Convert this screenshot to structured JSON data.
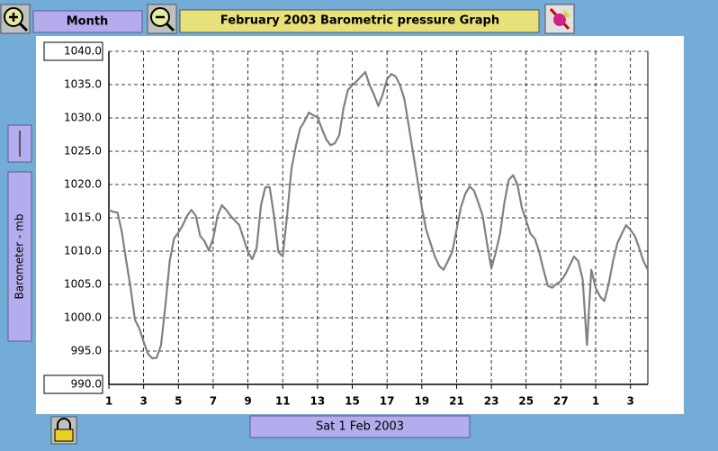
{
  "chart_data": {
    "type": "line",
    "title": "February 2003 Barometric pressure Graph",
    "y_label": "Barometer - mb",
    "color": "#808080",
    "grid": true,
    "x": [
      1,
      1.25,
      1.5,
      1.75,
      2,
      2.25,
      2.5,
      2.75,
      3,
      3.25,
      3.5,
      3.75,
      4,
      4.25,
      4.5,
      4.75,
      5,
      5.25,
      5.5,
      5.75,
      6,
      6.25,
      6.5,
      6.75,
      7,
      7.25,
      7.5,
      7.75,
      8,
      8.25,
      8.5,
      8.75,
      9,
      9.25,
      9.5,
      9.75,
      10,
      10.25,
      10.5,
      10.75,
      11,
      11.25,
      11.5,
      11.75,
      12,
      12.25,
      12.5,
      12.75,
      13,
      13.25,
      13.5,
      13.75,
      14,
      14.25,
      14.5,
      14.75,
      15,
      15.25,
      15.5,
      15.75,
      16,
      16.25,
      16.5,
      16.75,
      17,
      17.25,
      17.5,
      17.75,
      18,
      18.25,
      18.5,
      18.75,
      19,
      19.25,
      19.5,
      19.75,
      20,
      20.25,
      20.5,
      20.75,
      21,
      21.25,
      21.5,
      21.75,
      22,
      22.25,
      22.5,
      22.75,
      23,
      23.25,
      23.5,
      23.75,
      24,
      24.25,
      24.5,
      24.75,
      25,
      25.25,
      25.5,
      25.75,
      26,
      26.25,
      26.5,
      26.75,
      27,
      27.25,
      27.5,
      27.75,
      28,
      28.25,
      28.5,
      28.75,
      29,
      29.25,
      29.5,
      29.75,
      30,
      30.25,
      30.5,
      30.75,
      31,
      31.25,
      31.5,
      31.75,
      32
    ],
    "values": [
      1016.2,
      1015.9,
      1015.8,
      1012.8,
      1008.5,
      1004.5,
      999.7,
      998.4,
      996.4,
      994.6,
      993.9,
      994.0,
      995.9,
      1001.8,
      1008.5,
      1011.9,
      1012.8,
      1013.9,
      1015.3,
      1016.2,
      1015.3,
      1012.3,
      1011.5,
      1010.1,
      1011.9,
      1015.3,
      1016.9,
      1016.2,
      1015.3,
      1014.6,
      1013.9,
      1011.9,
      1009.9,
      1008.8,
      1010.5,
      1016.9,
      1019.6,
      1019.6,
      1015.3,
      1009.9,
      1009.2,
      1015.3,
      1022.3,
      1025.7,
      1028.4,
      1029.5,
      1030.8,
      1030.4,
      1030.1,
      1028.4,
      1026.8,
      1025.9,
      1026.2,
      1027.4,
      1031.5,
      1034.2,
      1034.9,
      1035.5,
      1036.2,
      1036.9,
      1034.9,
      1033.5,
      1031.8,
      1033.5,
      1035.8,
      1036.6,
      1036.2,
      1034.9,
      1032.8,
      1028.8,
      1024.7,
      1020.7,
      1016.6,
      1013.2,
      1011.2,
      1009.2,
      1007.8,
      1007.2,
      1008.5,
      1009.9,
      1013.2,
      1016.6,
      1018.6,
      1019.7,
      1019.1,
      1017.3,
      1015.3,
      1011.2,
      1007.4,
      1009.8,
      1012.6,
      1017.3,
      1020.7,
      1021.4,
      1020.0,
      1016.6,
      1014.6,
      1012.6,
      1011.9,
      1009.9,
      1007.2,
      1004.8,
      1004.5,
      1005.1,
      1005.5,
      1006.5,
      1007.8,
      1009.2,
      1008.5,
      1005.8,
      995.9,
      1007.2,
      1004.5,
      1003.2,
      1002.5,
      1005.1,
      1008.5,
      1011.2,
      1012.6,
      1013.9,
      1013.2,
      1012.3,
      1010.5,
      1008.5,
      1007.2
    ],
    "xlim": [
      1,
      32
    ],
    "xticks": [
      1,
      3,
      5,
      7,
      9,
      11,
      13,
      15,
      17,
      19,
      21,
      23,
      25,
      27,
      {
        "value": 29,
        "label": "1"
      },
      {
        "value": 31,
        "label": "3"
      }
    ],
    "ylim": [
      990,
      1040
    ],
    "yticks": [
      {
        "value": 990,
        "label": "990.0"
      },
      {
        "value": 995,
        "label": "995.0"
      },
      {
        "value": 1000,
        "label": "1000.0"
      },
      {
        "value": 1005,
        "label": "1005.0"
      },
      {
        "value": 1010,
        "label": "1010.0"
      },
      {
        "value": 1015,
        "label": "1015.0"
      },
      {
        "value": 1020,
        "label": "1020.0"
      },
      {
        "value": 1025,
        "label": "1025.0"
      },
      {
        "value": 1030,
        "label": "1030.0"
      },
      {
        "value": 1035,
        "label": "1035.0"
      },
      {
        "value": 1040,
        "label": "1040.0"
      }
    ]
  },
  "ui": {
    "period_button": "Month",
    "date_button": "Sat 1 Feb 2003"
  }
}
